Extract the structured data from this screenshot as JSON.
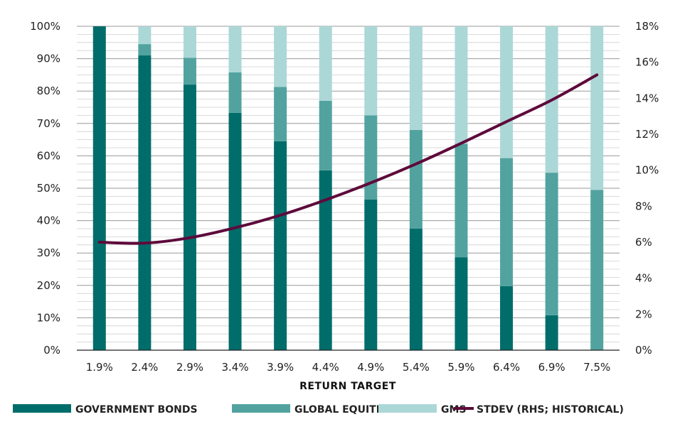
{
  "chart_data": {
    "type": "bar",
    "stacked": true,
    "categories": [
      "1.9%",
      "2.4%",
      "2.9%",
      "3.4%",
      "3.9%",
      "4.4%",
      "4.9%",
      "5.4%",
      "5.9%",
      "6.4%",
      "6.9%",
      "7.5%"
    ],
    "xlabel": "RETURN TARGET",
    "ylim": [
      0,
      100
    ],
    "y_ticks": [
      "0%",
      "10%",
      "20%",
      "30%",
      "40%",
      "50%",
      "60%",
      "70%",
      "80%",
      "90%",
      "100%"
    ],
    "y2lim": [
      0,
      18
    ],
    "y2_ticks": [
      "0%",
      "2%",
      "4%",
      "6%",
      "8%",
      "10%",
      "12%",
      "14%",
      "16%",
      "18%"
    ],
    "grid": true,
    "legend_position": "bottom",
    "series": [
      {
        "name": "GOVERNMENT BONDS",
        "color": "#006d6b",
        "axis": "left",
        "values": [
          100,
          91,
          82,
          73.3,
          64.5,
          55.5,
          46.5,
          37.5,
          28.7,
          19.8,
          10.8,
          0
        ]
      },
      {
        "name": "GLOBAL EQUITIES",
        "color": "#52a39f",
        "axis": "left",
        "values": [
          0,
          3.5,
          8.3,
          12.5,
          16.8,
          21.5,
          26,
          30.5,
          35,
          39.5,
          44,
          49.5
        ]
      },
      {
        "name": "GMS",
        "color": "#acd7d7",
        "axis": "left",
        "values": [
          0,
          5.5,
          9.7,
          14.2,
          18.7,
          23,
          27.5,
          32,
          36.3,
          40.7,
          45.2,
          50.5
        ]
      },
      {
        "name": "STDEV (RHS; HISTORICAL)",
        "color": "#5e0a3b",
        "axis": "right",
        "type": "line",
        "values": [
          6.0,
          5.95,
          6.25,
          6.8,
          7.5,
          8.35,
          9.3,
          10.35,
          11.5,
          12.7,
          13.9,
          15.3
        ]
      }
    ]
  }
}
